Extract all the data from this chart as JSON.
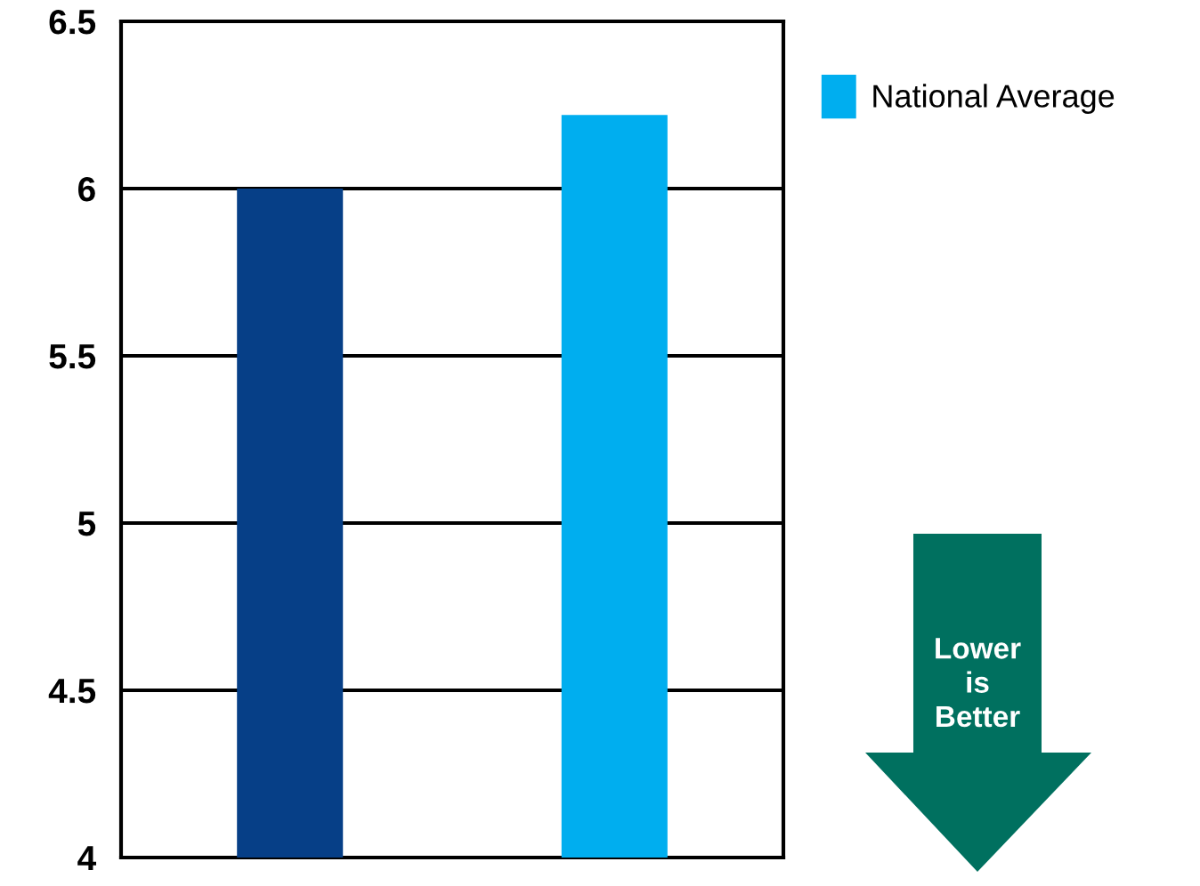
{
  "chart_data": {
    "type": "bar",
    "categories": [
      null
    ],
    "series": [
      {
        "color": "#063f87",
        "values": [
          6.0
        ]
      },
      {
        "name": "National Average",
        "color": "#00aeef",
        "values": [
          6.22
        ]
      }
    ],
    "ylim": [
      4,
      6.5
    ],
    "yticks": [
      4,
      4.5,
      5,
      5.5,
      6,
      6.5
    ],
    "grid": "y",
    "legend": "top right",
    "annotations": [
      "Lower\nis\nBetter"
    ]
  }
}
